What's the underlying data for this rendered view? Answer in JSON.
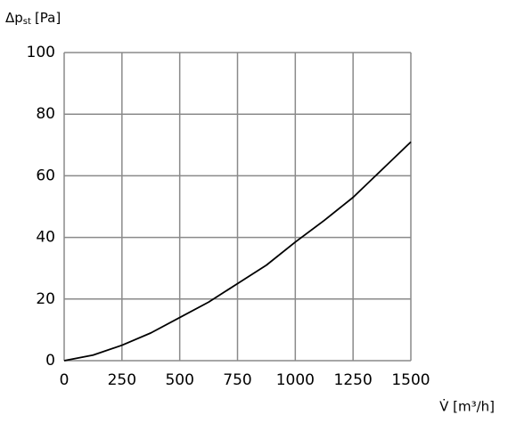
{
  "chart_data": {
    "type": "line",
    "y_label": {
      "symbol": "Δp",
      "subscript": "st",
      "unit": "[Pa]"
    },
    "x_label": "V̇ [m³/h]",
    "x": [
      0,
      125,
      250,
      375,
      500,
      625,
      750,
      875,
      1000,
      1125,
      1250,
      1375,
      1500
    ],
    "series": [
      {
        "color": "#000000",
        "values": [
          0,
          1.8,
          5,
          9,
          14,
          19,
          25,
          31,
          38.5,
          45.5,
          53,
          62,
          71
        ]
      }
    ],
    "xlim": [
      0,
      1500
    ],
    "xticks": [
      0,
      250,
      500,
      750,
      1000,
      1250,
      1500
    ],
    "ylim": [
      0,
      100
    ],
    "yticks": [
      0,
      20,
      40,
      60,
      80,
      100
    ],
    "grid": true,
    "grid_color": "#8a8a8a"
  }
}
